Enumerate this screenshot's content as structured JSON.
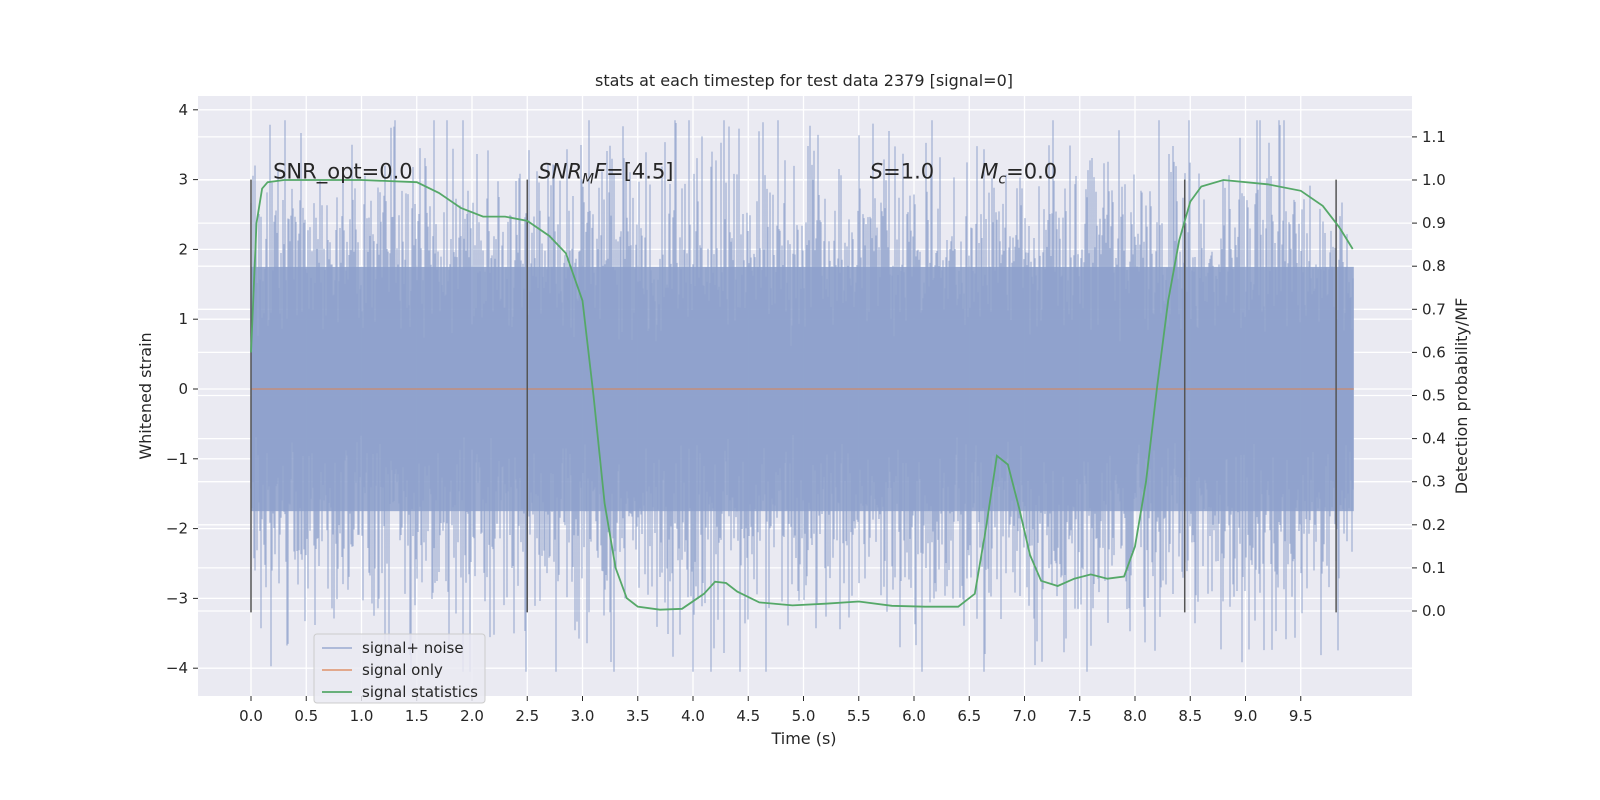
{
  "chart_data": {
    "type": "line",
    "title": "stats at each timestep for test data 2379 [signal=0]",
    "xlabel": "Time (s)",
    "ylabel": "Whitened strain",
    "ylabel_right": "Detection probability/MF",
    "xlim": [
      -0.5,
      10.5
    ],
    "ylim": [
      -4.4,
      4.2
    ],
    "ylim_right": [
      -0.2,
      1.2
    ],
    "x_ticks": [
      "0.0",
      "0.5",
      "1.0",
      "1.5",
      "2.0",
      "2.5",
      "3.0",
      "3.5",
      "4.0",
      "4.5",
      "5.0",
      "5.5",
      "6.0",
      "6.5",
      "7.0",
      "7.5",
      "8.0",
      "8.5",
      "9.0",
      "9.5"
    ],
    "y_ticks": [
      "4",
      "3",
      "2",
      "1",
      "0",
      "−1",
      "−2",
      "−3",
      "−4"
    ],
    "y_right_ticks": [
      "1.1",
      "1.0",
      "0.9",
      "0.8",
      "0.7",
      "0.6",
      "0.5",
      "0.4",
      "0.3",
      "0.2",
      "0.1",
      "0.0"
    ],
    "grid": true,
    "legend_position": "lower-left",
    "annotations": [
      {
        "text": "SNR_opt=0.0",
        "x": 0.2,
        "y": 3.0
      },
      {
        "text": "SNR_MF=[4.5]",
        "base": "SNR",
        "sub": "M",
        "rest": "F=[4.5]",
        "italic": true,
        "x": 2.6,
        "y": 3.0
      },
      {
        "text": "S=1.0",
        "base": "S",
        "rest": "=1.0",
        "italic": true,
        "x": 5.6,
        "y": 3.0
      },
      {
        "text": "M_c=0.0",
        "base": "M",
        "sub": "c",
        "rest": "=0.0",
        "italic": true,
        "x": 6.6,
        "y": 3.0
      }
    ],
    "vlines": [
      0.0,
      2.5,
      8.45,
      9.82
    ],
    "vline_range": [
      -3.2,
      3.0
    ],
    "series": [
      {
        "name": "signal+ noise",
        "color": "#8da0cb",
        "description_values": "dense gaussian noise, std ~1, spanning 0.0 to 10.0 s",
        "x_range": [
          0.0,
          9.98
        ],
        "envelope": {
          "typical_max": 3.0,
          "typical_min": -3.0,
          "peak_max": 3.85,
          "peak_min": -4.05
        }
      },
      {
        "name": "signal only",
        "color": "#dd8452",
        "x": [
          0.0,
          9.98
        ],
        "y": [
          0.0,
          0.0
        ]
      },
      {
        "name": "signal statistics",
        "color": "#55a868",
        "axis": "right",
        "x": [
          0.0,
          0.05,
          0.1,
          0.15,
          0.3,
          0.5,
          1.0,
          1.5,
          1.7,
          1.9,
          2.1,
          2.3,
          2.5,
          2.7,
          2.85,
          3.0,
          3.1,
          3.2,
          3.3,
          3.4,
          3.5,
          3.7,
          3.9,
          4.1,
          4.2,
          4.3,
          4.4,
          4.6,
          4.9,
          5.2,
          5.5,
          5.8,
          6.1,
          6.4,
          6.55,
          6.65,
          6.75,
          6.85,
          6.95,
          7.05,
          7.15,
          7.3,
          7.45,
          7.6,
          7.75,
          7.9,
          8.0,
          8.1,
          8.2,
          8.3,
          8.4,
          8.5,
          8.6,
          8.8,
          9.2,
          9.5,
          9.7,
          9.85,
          9.97
        ],
        "y": [
          0.6,
          0.9,
          0.98,
          0.995,
          1.0,
          1.0,
          1.0,
          0.995,
          0.97,
          0.935,
          0.915,
          0.915,
          0.905,
          0.87,
          0.83,
          0.72,
          0.5,
          0.25,
          0.1,
          0.03,
          0.01,
          0.003,
          0.005,
          0.04,
          0.068,
          0.065,
          0.045,
          0.02,
          0.013,
          0.017,
          0.022,
          0.012,
          0.01,
          0.01,
          0.04,
          0.19,
          0.36,
          0.34,
          0.24,
          0.13,
          0.07,
          0.058,
          0.075,
          0.085,
          0.075,
          0.08,
          0.15,
          0.3,
          0.52,
          0.72,
          0.86,
          0.95,
          0.985,
          1.0,
          0.99,
          0.975,
          0.94,
          0.89,
          0.84
        ]
      }
    ]
  }
}
